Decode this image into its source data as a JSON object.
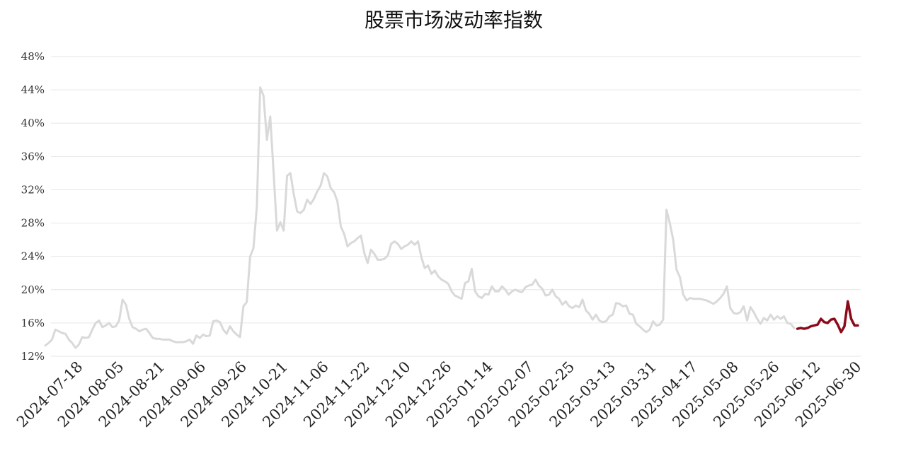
{
  "chart_data": {
    "type": "line",
    "title": "股票市场波动率指数",
    "xlabel": "",
    "ylabel": "",
    "ylim": [
      12,
      48
    ],
    "yticks": [
      12,
      16,
      20,
      24,
      28,
      32,
      36,
      40,
      44,
      48
    ],
    "ytick_labels": [
      "12%",
      "16%",
      "20%",
      "24%",
      "28%",
      "32%",
      "36%",
      "40%",
      "44%",
      "48%"
    ],
    "xtick_labels": [
      "2024-07-18",
      "2024-08-05",
      "2024-08-21",
      "2024-09-06",
      "2024-09-26",
      "2024-10-21",
      "2024-11-06",
      "2024-11-22",
      "2024-12-10",
      "2024-12-26",
      "2025-01-14",
      "2025-02-07",
      "2025-02-25",
      "2025-03-13",
      "2025-03-31",
      "2025-04-17",
      "2025-05-08",
      "2025-05-26",
      "2025-06-12",
      "2025-06-30"
    ],
    "grid": "horizontal",
    "legend": "none",
    "colors": {
      "history": "#d9d9d9",
      "recent": "#8b0a1a",
      "grid": "#e6e6e6"
    },
    "series": [
      {
        "color": "#d9d9d9",
        "values": [
          13.3,
          13.6,
          14.0,
          15.2,
          15.0,
          14.8,
          14.7,
          14.0,
          13.6,
          13.0,
          13.4,
          14.3,
          14.2,
          14.3,
          15.2,
          16.0,
          16.3,
          15.5,
          15.7,
          16.0,
          15.5,
          15.6,
          16.3,
          18.8,
          18.2,
          16.5,
          15.5,
          15.3,
          15.0,
          15.2,
          15.3,
          14.8,
          14.2,
          14.1,
          14.1,
          14.0,
          14.0,
          14.0,
          13.8,
          13.7,
          13.7,
          13.7,
          13.8,
          14.0,
          13.5,
          14.5,
          14.2,
          14.6,
          14.4,
          14.5,
          16.2,
          16.3,
          16.1,
          15.2,
          14.7,
          15.6,
          15.0,
          14.6,
          14.3,
          18.0,
          18.5,
          24.0,
          25.0,
          30.0,
          44.3,
          43.3,
          38.0,
          40.8,
          34.0,
          27.1,
          28.1,
          27.1,
          33.7,
          34.0,
          31.5,
          29.4,
          29.2,
          29.6,
          30.8,
          30.3,
          30.9,
          31.8,
          32.5,
          34.0,
          33.6,
          32.2,
          31.7,
          30.6,
          27.6,
          26.7,
          25.2,
          25.6,
          25.8,
          26.2,
          26.5,
          24.4,
          23.2,
          24.8,
          24.3,
          23.6,
          23.6,
          23.7,
          24.1,
          25.5,
          25.8,
          25.5,
          24.9,
          25.2,
          25.4,
          25.8,
          25.4,
          25.8,
          23.9,
          22.6,
          22.9,
          21.9,
          22.3,
          21.6,
          21.2,
          21.0,
          20.7,
          19.8,
          19.3,
          19.1,
          18.9,
          20.8,
          21.0,
          22.5,
          19.8,
          19.2,
          19.0,
          19.5,
          19.4,
          20.4,
          19.8,
          19.8,
          20.4,
          20.0,
          19.4,
          19.8,
          20.0,
          19.8,
          19.7,
          20.3,
          20.5,
          20.6,
          21.2,
          20.5,
          20.1,
          19.3,
          19.4,
          20.0,
          19.2,
          18.9,
          18.2,
          18.6,
          18.0,
          17.8,
          18.1,
          17.9,
          18.8,
          17.5,
          17.1,
          16.4,
          17.0,
          16.3,
          16.1,
          16.2,
          16.8,
          17.0,
          18.4,
          18.3,
          18.0,
          18.1,
          17.1,
          17.0,
          15.9,
          15.6,
          15.2,
          14.9,
          15.2,
          16.2,
          15.7,
          15.8,
          16.4,
          29.6,
          28.0,
          26.0,
          22.4,
          21.5,
          19.4,
          18.7,
          19.0,
          18.9,
          18.9,
          18.9,
          18.8,
          18.7,
          18.5,
          18.3,
          18.6,
          19.0,
          19.5,
          20.4,
          17.8,
          17.2,
          17.1,
          17.3,
          18.0,
          16.3,
          17.9,
          17.3,
          16.5,
          15.9,
          16.6,
          16.3,
          17.0,
          16.4,
          16.8,
          16.5,
          16.8,
          16.0,
          15.9,
          15.4
        ]
      },
      {
        "color": "#8b0a1a",
        "values": [
          15.3,
          15.4,
          15.3,
          15.4,
          15.6,
          15.7,
          15.8,
          16.5,
          16.1,
          16.0,
          16.4,
          16.5,
          15.8,
          14.9,
          15.6,
          18.6,
          16.5,
          15.7,
          15.7
        ]
      }
    ]
  }
}
